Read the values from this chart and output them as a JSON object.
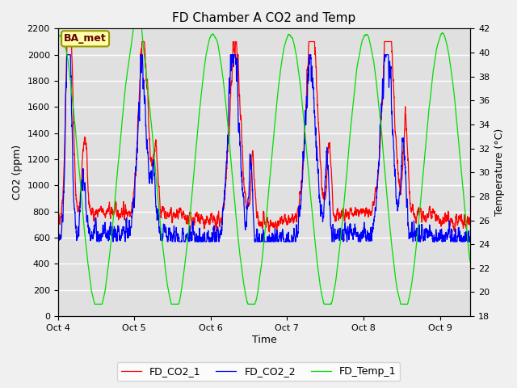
{
  "title": "FD Chamber A CO2 and Temp",
  "xlabel": "Time",
  "ylabel_left": "CO2 (ppm)",
  "ylabel_right": "Temperature (°C)",
  "annotation": "BA_met",
  "co2_ylim": [
    0,
    2200
  ],
  "co2_yticks": [
    0,
    200,
    400,
    600,
    800,
    1000,
    1200,
    1400,
    1600,
    1800,
    2000,
    2200
  ],
  "temp_ylim": [
    18,
    42
  ],
  "temp_yticks": [
    18,
    20,
    22,
    24,
    26,
    28,
    30,
    32,
    34,
    36,
    38,
    40,
    42
  ],
  "xlim": [
    0,
    5.4
  ],
  "xtick_days": [
    0,
    1,
    2,
    3,
    4,
    5
  ],
  "xtick_labels": [
    "Oct 4",
    "Oct 5",
    "Oct 6",
    "Oct 7",
    "Oct 8",
    "Oct 9"
  ],
  "legend_labels": [
    "FD_CO2_1",
    "FD_CO2_2",
    "FD_Temp_1"
  ],
  "line_colors": {
    "co2_1": "red",
    "co2_2": "blue",
    "temp": "#00dd00"
  },
  "bg_color": "#f0f0f0",
  "plot_bg_color": "#e0e0e0",
  "grid_color": "white",
  "annotation_bg": "#ffffaa",
  "annotation_border": "#999900",
  "linewidth": 0.9,
  "figsize": [
    6.4,
    4.8
  ],
  "dpi": 100
}
